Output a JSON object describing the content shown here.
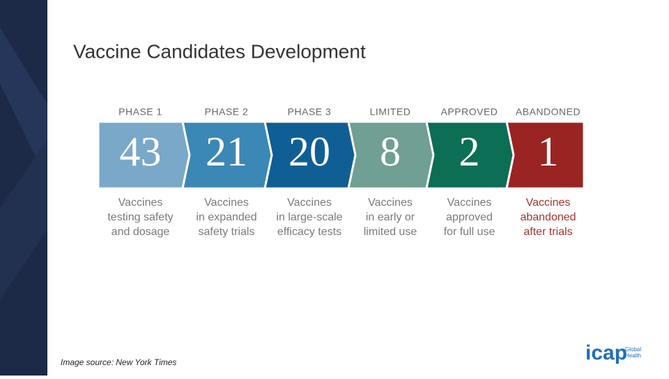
{
  "title": "Vaccine Candidates Development",
  "phases": [
    {
      "label": "PHASE 1",
      "count": "43",
      "description": [
        "Vaccines",
        "testing safety",
        "and dosage"
      ]
    },
    {
      "label": "PHASE 2",
      "count": "21",
      "description": [
        "Vaccines",
        "in expanded",
        "safety trials"
      ]
    },
    {
      "label": "PHASE 3",
      "count": "20",
      "description": [
        "Vaccines",
        "in large-scale",
        "efficacy tests"
      ]
    },
    {
      "label": "LIMITED",
      "count": "8",
      "description": [
        "Vaccines",
        "in early or",
        "limited use"
      ]
    },
    {
      "label": "APPROVED",
      "count": "2",
      "description": [
        "Vaccines",
        "approved",
        "for full use"
      ]
    },
    {
      "label": "ABANDONED",
      "count": "1",
      "description": [
        "Vaccines",
        "abandoned",
        "after trials"
      ]
    }
  ],
  "source": "Image source: New York Times",
  "logo": {
    "name": "icap",
    "tagline": [
      "Global",
      "Health"
    ]
  }
}
